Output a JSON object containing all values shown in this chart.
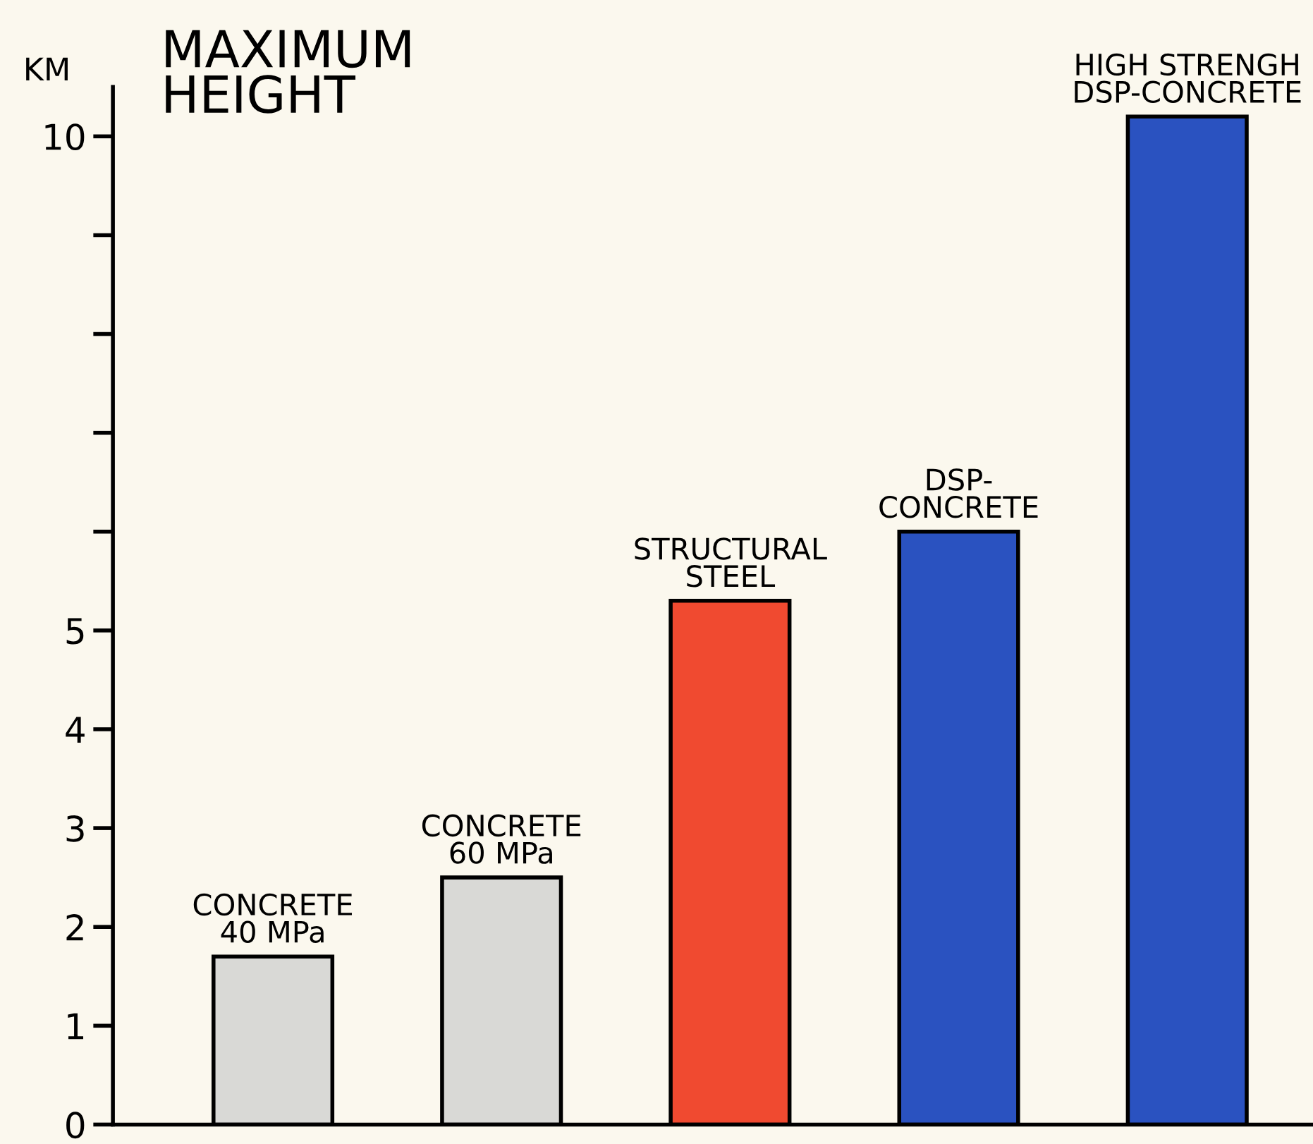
{
  "chart_data": {
    "type": "bar",
    "title": "MAXIMUM HEIGHT",
    "ylabel": "KM",
    "categories": [
      "CONCRETE\n40 MPa",
      "CONCRETE\n60 MPa",
      "STRUCTURAL\nSTEEL",
      "DSP-\nCONCRETE",
      "HIGH STRENGH\nDSP-CONCRETE"
    ],
    "values": [
      1.7,
      2.5,
      5.3,
      6.0,
      10.2
    ],
    "colors": [
      "#d9d9d6",
      "#d9d9d6",
      "#f04a30",
      "#2a52c0",
      "#2a52c0"
    ],
    "ylim": [
      0,
      10.5
    ],
    "yticks": [
      0,
      1,
      2,
      3,
      4,
      5,
      {
        "value": 6,
        "label": null
      },
      {
        "value": 7,
        "label": null
      },
      {
        "value": 8,
        "label": null
      },
      {
        "value": 9,
        "label": null
      },
      10
    ],
    "grid": false
  }
}
